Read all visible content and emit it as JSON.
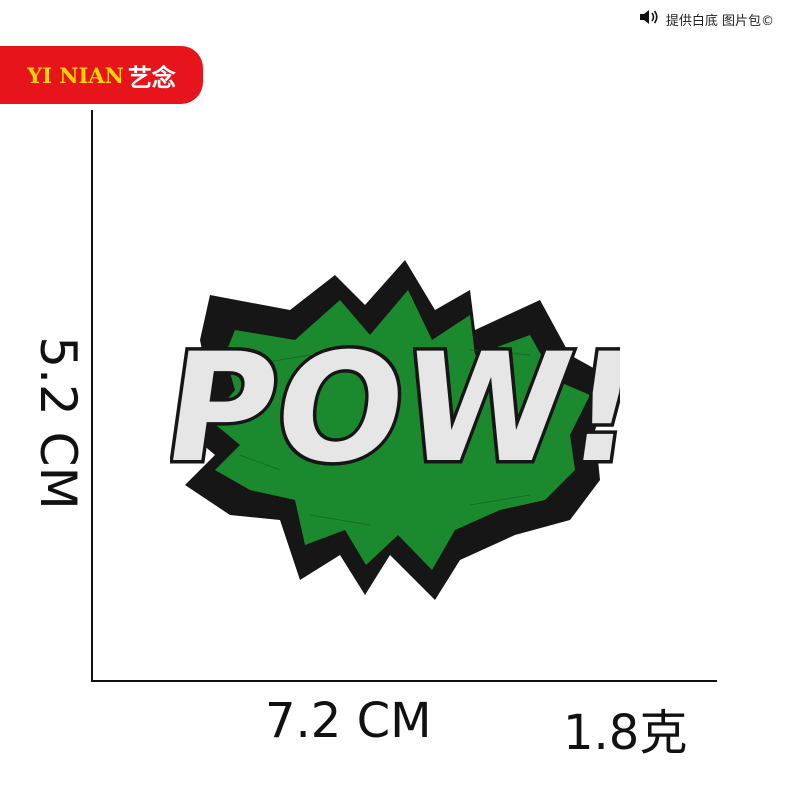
{
  "top_note": {
    "icon": "speaker-icon",
    "text": "提供白底 图片包©"
  },
  "brand": {
    "latin": "YI NIAN",
    "chinese": "艺念",
    "bg_color": "#e8141c",
    "text_color": "#ffd400"
  },
  "dimensions": {
    "height": "5.2 CM",
    "width": "7.2 CM",
    "weight": "1.8克"
  },
  "patch": {
    "text": "POW!",
    "colors": {
      "outline": "#161616",
      "burst": "#1b8a2e",
      "letters": "#e6e6e6"
    }
  }
}
